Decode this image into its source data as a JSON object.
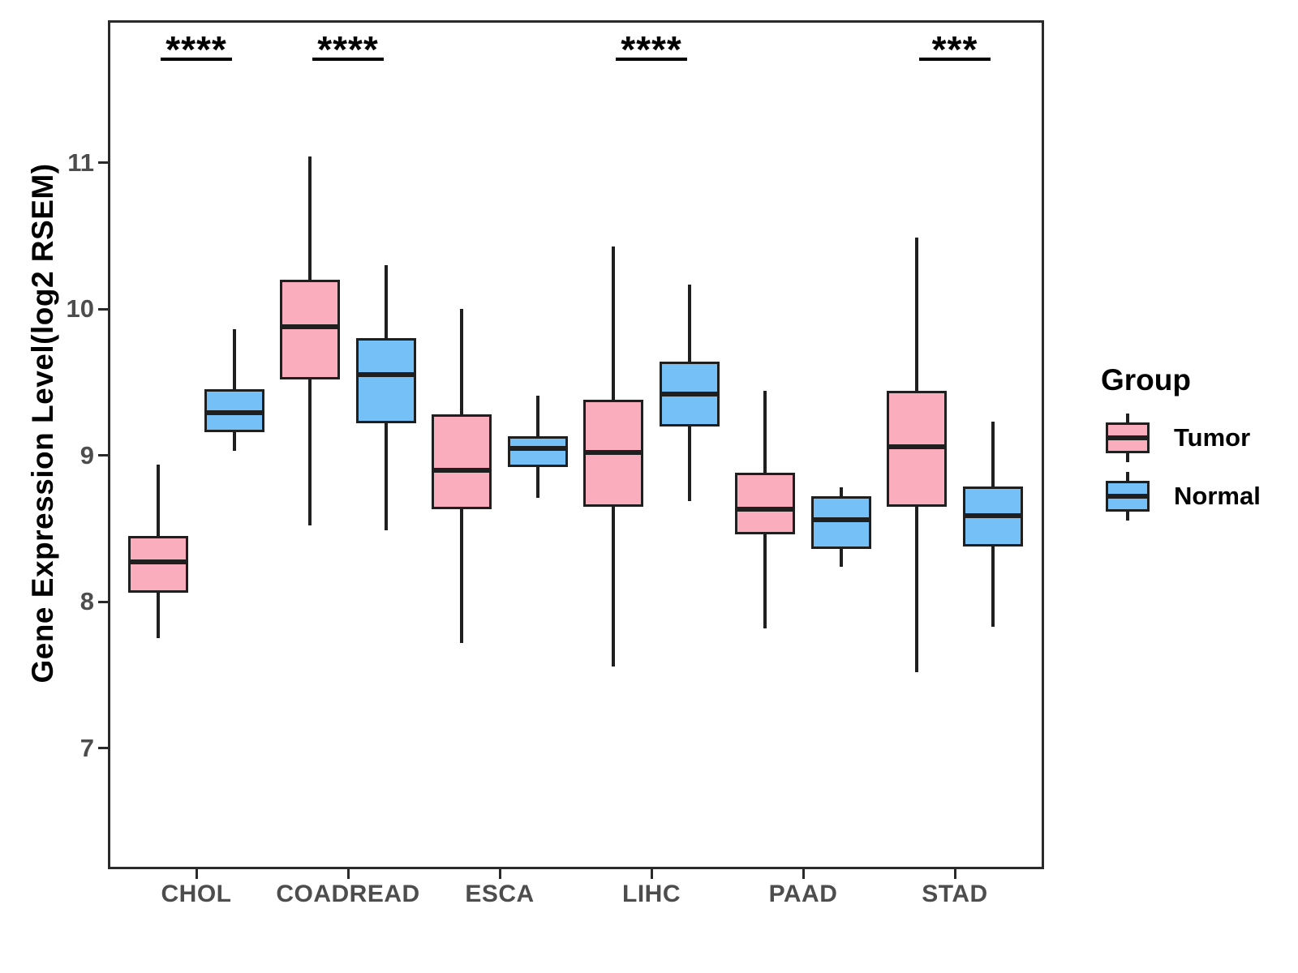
{
  "figure": {
    "background": "#FFFFFF",
    "y_axis": {
      "title": "Gene Expression Level(log2 RSEM)",
      "tick_labels": [
        "7",
        "8",
        "9",
        "10",
        "11"
      ]
    },
    "x_axis": {
      "tick_labels": [
        "CHOL",
        "COADREAD",
        "ESCA",
        "LIHC",
        "PAAD",
        "STAD"
      ]
    },
    "legend": {
      "title": "Group",
      "entries": [
        {
          "label": "Tumor",
          "color": "#FAADBD"
        },
        {
          "label": "Normal",
          "color": "#74C0F7"
        }
      ]
    }
  },
  "chart_data": {
    "type": "boxplot",
    "title": "",
    "xlabel": "",
    "ylabel": "Gene Expression Level(log2 RSEM)",
    "categories": [
      "CHOL",
      "COADREAD",
      "ESCA",
      "LIHC",
      "PAAD",
      "STAD"
    ],
    "yticks": [
      7,
      8,
      9,
      10,
      11
    ],
    "ylim": [
      6.17,
      11.97
    ],
    "grid": false,
    "legend_position": "right",
    "legend_title": "Group",
    "series": [
      {
        "name": "Tumor",
        "color": "#FAADBD",
        "boxes": [
          {
            "category": "CHOL",
            "lo": 7.75,
            "q1": 8.06,
            "med": 8.27,
            "q3": 8.45,
            "hi": 8.94
          },
          {
            "category": "COADREAD",
            "lo": 8.52,
            "q1": 9.52,
            "med": 9.88,
            "q3": 10.2,
            "hi": 11.04
          },
          {
            "category": "ESCA",
            "lo": 7.72,
            "q1": 8.63,
            "med": 8.9,
            "q3": 9.28,
            "hi": 10.0
          },
          {
            "category": "LIHC",
            "lo": 7.56,
            "q1": 8.65,
            "med": 9.02,
            "q3": 9.38,
            "hi": 10.43
          },
          {
            "category": "PAAD",
            "lo": 7.82,
            "q1": 8.46,
            "med": 8.63,
            "q3": 8.88,
            "hi": 9.44
          },
          {
            "category": "STAD",
            "lo": 7.52,
            "q1": 8.65,
            "med": 9.06,
            "q3": 9.44,
            "hi": 10.49
          }
        ]
      },
      {
        "name": "Normal",
        "color": "#74C0F7",
        "boxes": [
          {
            "category": "CHOL",
            "lo": 9.03,
            "q1": 9.16,
            "med": 9.29,
            "q3": 9.45,
            "hi": 9.86
          },
          {
            "category": "COADREAD",
            "lo": 8.49,
            "q1": 9.22,
            "med": 9.55,
            "q3": 9.8,
            "hi": 10.3
          },
          {
            "category": "ESCA",
            "lo": 8.71,
            "q1": 8.92,
            "med": 9.05,
            "q3": 9.13,
            "hi": 9.41
          },
          {
            "category": "LIHC",
            "lo": 8.69,
            "q1": 9.2,
            "med": 9.42,
            "q3": 9.64,
            "hi": 10.17
          },
          {
            "category": "PAAD",
            "lo": 8.24,
            "q1": 8.36,
            "med": 8.56,
            "q3": 8.72,
            "hi": 8.78
          },
          {
            "category": "STAD",
            "lo": 7.83,
            "q1": 8.38,
            "med": 8.59,
            "q3": 8.79,
            "hi": 9.23
          }
        ]
      }
    ],
    "annotations": [
      {
        "category": "CHOL",
        "text": "****"
      },
      {
        "category": "COADREAD",
        "text": "****"
      },
      {
        "category": "LIHC",
        "text": "****"
      },
      {
        "category": "STAD",
        "text": "***"
      }
    ]
  }
}
